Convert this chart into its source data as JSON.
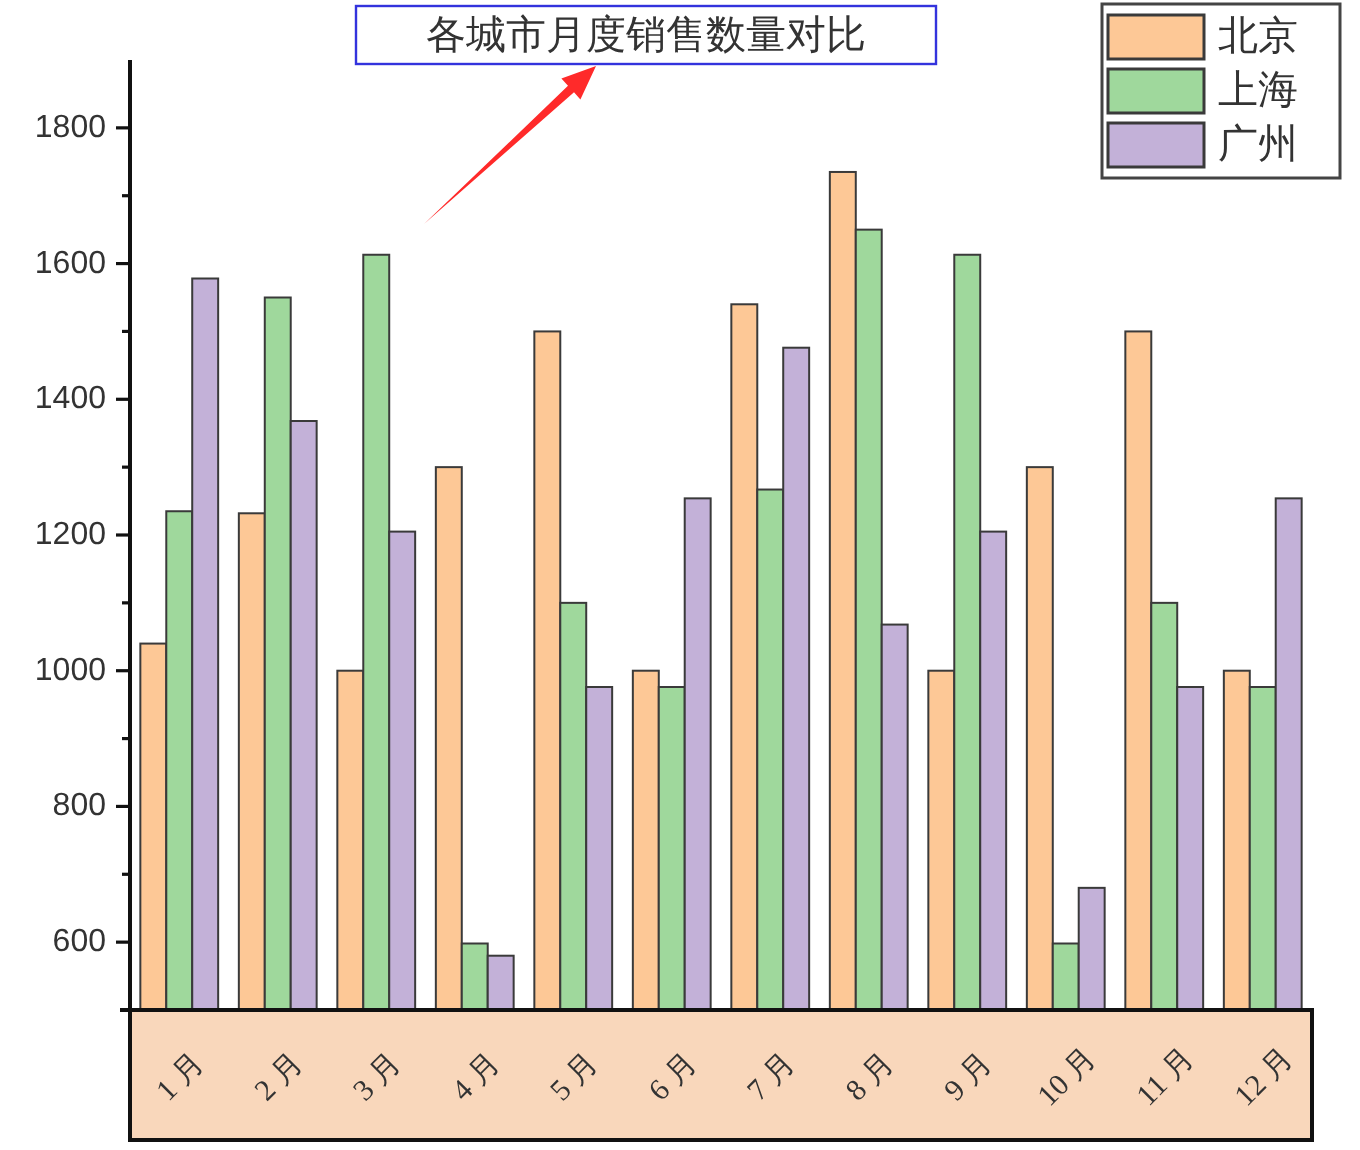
{
  "chart_data": {
    "type": "bar",
    "title": "各城市月度销售数量对比",
    "categories": [
      "1 月",
      "2 月",
      "3 月",
      "4 月",
      "5 月",
      "6 月",
      "7 月",
      "8 月",
      "9 月",
      "10 月",
      "11 月",
      "12 月"
    ],
    "series": [
      {
        "name": "北京",
        "color": "#fdc896",
        "values": [
          1040,
          1232,
          1000,
          1300,
          1500,
          1000,
          1540,
          1735,
          1000,
          1300,
          1500,
          1000
        ]
      },
      {
        "name": "上海",
        "color": "#9fd89c",
        "values": [
          1235,
          1550,
          1613,
          598,
          1100,
          976,
          1267,
          1650,
          1613,
          598,
          1100,
          976
        ]
      },
      {
        "name": "广州",
        "color": "#c3b1d8",
        "values": [
          1578,
          1368,
          1205,
          580,
          976,
          1254,
          1476,
          1068,
          1205,
          680,
          976,
          1254
        ]
      }
    ],
    "ylim": [
      500,
      1900
    ],
    "yticks": [
      600,
      {
        "value": 700,
        "label": null
      },
      800,
      {
        "value": 900,
        "label": null
      },
      1000,
      {
        "value": 1100,
        "label": null
      },
      1200,
      {
        "value": 1300,
        "label": null
      },
      1400,
      {
        "value": 1500,
        "label": null
      },
      1600,
      {
        "value": 1700,
        "label": null
      },
      1800
    ],
    "legend": "top right",
    "grid": false
  }
}
